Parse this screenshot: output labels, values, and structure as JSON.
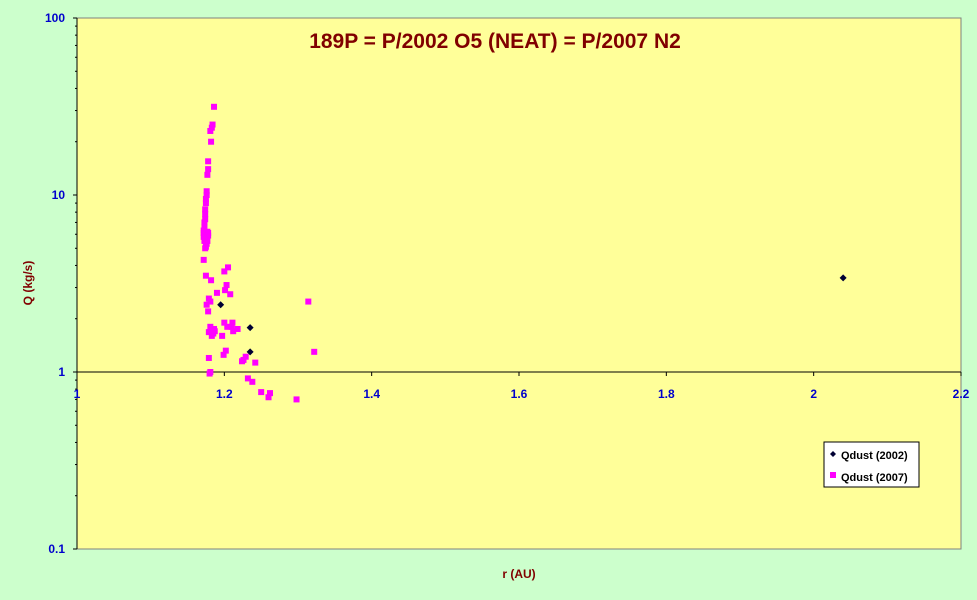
{
  "chart_data": {
    "type": "scatter",
    "title": "189P = P/2002 O5 (NEAT) = P/2007 N2",
    "xlabel": "r (AU)",
    "ylabel": "Q (kg/s)",
    "xlim": [
      1,
      2.2
    ],
    "ylim": [
      0.1,
      100
    ],
    "yscale": "log",
    "x_ticks": [
      1,
      1.2,
      1.4,
      1.6,
      1.8,
      2,
      2.2
    ],
    "x_tick_labels": [
      "1",
      "1.2",
      "1.4",
      "1.6",
      "1.8",
      "2",
      "2.2"
    ],
    "y_ticks": [
      0.1,
      1,
      10,
      100
    ],
    "y_tick_labels": [
      "0.1",
      "1",
      "10",
      "100"
    ],
    "grid": false,
    "legend": "bottom-right",
    "colors": {
      "plot_bg": "#ffff99",
      "page_bg": "#ccffcc",
      "title": "#800000",
      "ticks": "#0000cc"
    },
    "series": [
      {
        "name": "Qdust (2002)",
        "marker": "diamond",
        "color": "#000033",
        "x": [
          1.195,
          1.235,
          1.235,
          2.04
        ],
        "y": [
          2.4,
          1.78,
          1.3,
          3.4
        ]
      },
      {
        "name": "Qdust (2007)",
        "marker": "square",
        "color": "#ff00ff",
        "x": [
          1.186,
          1.184,
          1.183,
          1.181,
          1.182,
          1.178,
          1.178,
          1.177,
          1.176,
          1.176,
          1.175,
          1.175,
          1.174,
          1.174,
          1.174,
          1.173,
          1.173,
          1.172,
          1.172,
          1.172,
          1.173,
          1.176,
          1.175,
          1.174,
          1.177,
          1.176,
          1.178,
          1.177,
          1.178,
          1.172,
          1.175,
          1.182,
          1.179,
          1.181,
          1.176,
          1.178,
          1.181,
          1.186,
          1.187,
          1.183,
          1.185,
          1.179,
          1.181,
          1.183,
          1.179,
          1.18,
          1.19,
          1.2,
          1.205,
          1.203,
          1.201,
          1.208,
          1.2,
          1.204,
          1.211,
          1.21,
          1.212,
          1.218,
          1.197,
          1.202,
          1.199,
          1.229,
          1.224,
          1.226,
          1.242,
          1.232,
          1.238,
          1.25,
          1.26,
          1.262,
          1.298,
          1.314,
          1.322
        ],
        "y": [
          31.5,
          25,
          24,
          23,
          20,
          15.5,
          14,
          13,
          10.5,
          10,
          9.5,
          9,
          8.3,
          7.8,
          7.3,
          7,
          6.6,
          6.3,
          6.1,
          5.8,
          5.5,
          5.3,
          5.1,
          5,
          6.2,
          5.7,
          6.1,
          5.5,
          5.9,
          4.3,
          3.5,
          3.3,
          2.6,
          2.5,
          2.4,
          2.2,
          1.8,
          1.75,
          1.7,
          1.72,
          1.65,
          1.2,
          1,
          1.6,
          1.68,
          0.98,
          2.8,
          3.7,
          3.9,
          3.1,
          2.9,
          2.75,
          1.9,
          1.8,
          1.9,
          1.8,
          1.7,
          1.75,
          1.6,
          1.32,
          1.25,
          1.22,
          1.15,
          1.17,
          1.13,
          0.92,
          0.88,
          0.77,
          0.72,
          0.76,
          0.7,
          2.5,
          1.3
        ]
      }
    ]
  }
}
